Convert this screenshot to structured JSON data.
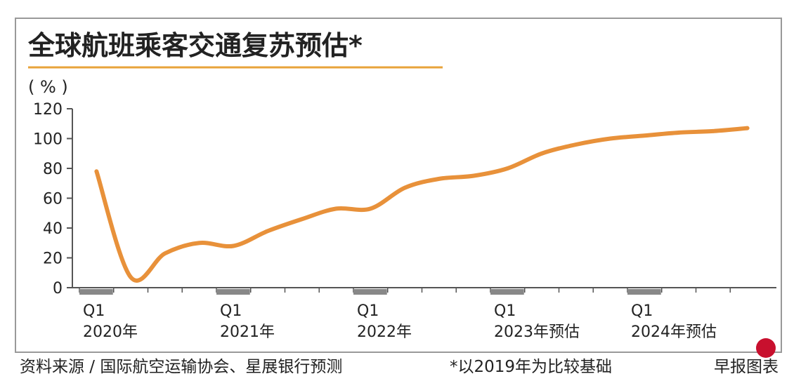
{
  "chart_data": {
    "type": "line",
    "title": "全球航班乘客交通复苏预估*",
    "y_label": "( % )",
    "categories": [
      "Q1 2020年",
      null,
      null,
      null,
      "Q1 2021年",
      null,
      null,
      null,
      "Q1 2022年",
      null,
      null,
      null,
      "Q1 2023年预估",
      null,
      null,
      null,
      "Q1 2024年预估",
      null,
      null,
      null
    ],
    "series": [
      {
        "name": "全球航班乘客交通",
        "color": "#e8913a",
        "values": [
          78,
          7,
          23,
          30,
          28,
          38,
          46,
          53,
          53,
          67,
          73,
          75,
          80,
          90,
          96,
          100,
          102,
          104,
          105,
          107
        ]
      }
    ],
    "ylim": [
      0,
      120
    ],
    "yticks": [
      0,
      20,
      40,
      60,
      80,
      100,
      120
    ],
    "grid": false,
    "source": "资料来源 / 国际航空运输协会、星展银行预测",
    "note": "*以2019年为比较基础",
    "credit": "早报图表"
  }
}
